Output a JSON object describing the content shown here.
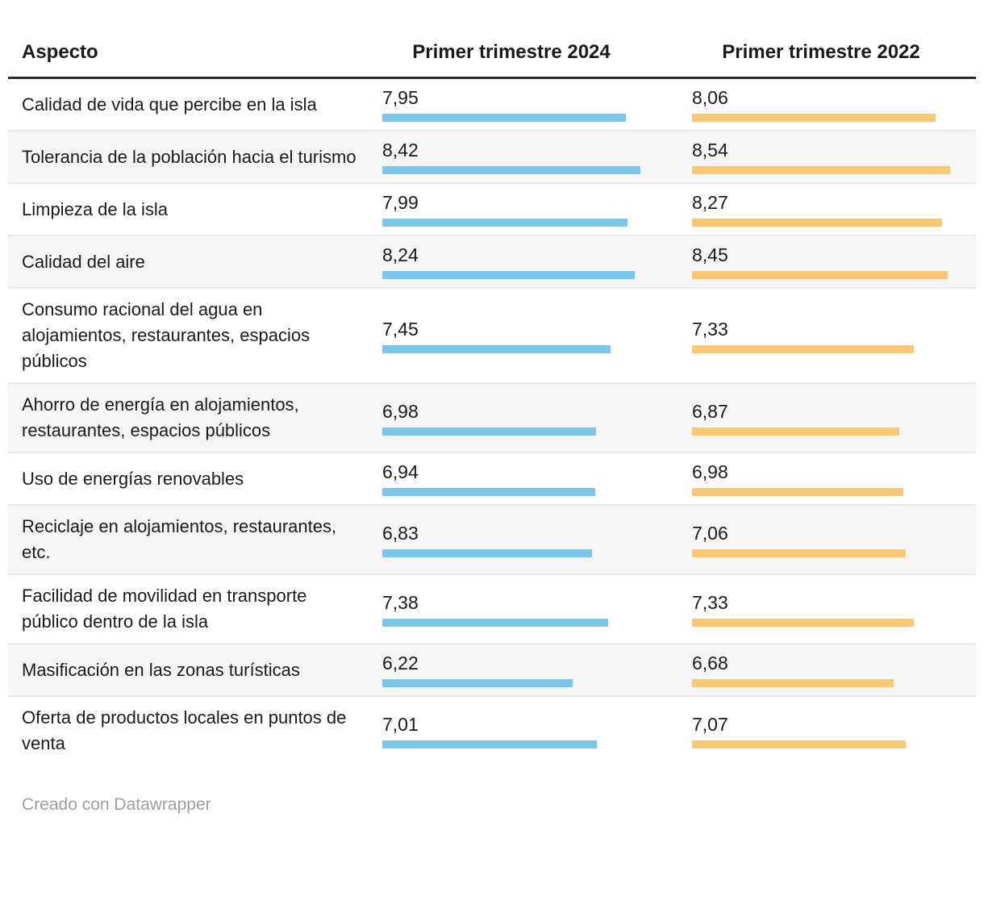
{
  "table": {
    "columns": [
      "Aspecto",
      "Primer trimestre 2024",
      "Primer trimestre 2022"
    ],
    "rows": [
      {
        "label": "Calidad de vida que percibe en la isla",
        "v2024": "7,95",
        "v2022": "8,06"
      },
      {
        "label": "Tolerancia de la población hacia el turismo",
        "v2024": "8,42",
        "v2022": "8,54"
      },
      {
        "label": "Limpieza de la isla",
        "v2024": "7,99",
        "v2022": "8,27"
      },
      {
        "label": "Calidad del aire",
        "v2024": "8,24",
        "v2022": "8,45"
      },
      {
        "label": "Consumo racional del agua en alojamientos, restaurantes, espacios públicos",
        "v2024": "7,45",
        "v2022": "7,33"
      },
      {
        "label": "Ahorro de energía en alojamientos, restaurantes, espacios públicos",
        "v2024": "6,98",
        "v2022": "6,87"
      },
      {
        "label": "Uso de energías renovables",
        "v2024": "6,94",
        "v2022": "6,98"
      },
      {
        "label": "Reciclaje en alojamientos, restaurantes, etc.",
        "v2024": "6,83",
        "v2022": "7,06"
      },
      {
        "label": "Facilidad de movilidad en transporte público dentro de la isla",
        "v2024": "7,38",
        "v2022": "7,33"
      },
      {
        "label": "Masificación en las zonas turísticas",
        "v2024": "6,22",
        "v2022": "6,68"
      },
      {
        "label": "Oferta de productos locales en puntos de venta",
        "v2024": "7,01",
        "v2022": "7,07"
      }
    ]
  },
  "chart_data": {
    "type": "table",
    "title": "",
    "categories": [
      "Calidad de vida que percibe en la isla",
      "Tolerancia de la población hacia el turismo",
      "Limpieza de la isla",
      "Calidad del aire",
      "Consumo racional del agua en alojamientos, restaurantes, espacios públicos",
      "Ahorro de energía en alojamientos, restaurantes, espacios públicos",
      "Uso de energías renovables",
      "Reciclaje en alojamientos, restaurantes, etc.",
      "Facilidad de movilidad en transporte público dentro de la isla",
      "Masificación en las zonas turísticas",
      "Oferta de productos locales en puntos de venta"
    ],
    "series": [
      {
        "name": "Primer trimestre 2024",
        "values": [
          7.95,
          8.42,
          7.99,
          8.24,
          7.45,
          6.98,
          6.94,
          6.83,
          7.38,
          6.22,
          7.01
        ]
      },
      {
        "name": "Primer trimestre 2022",
        "values": [
          8.06,
          8.54,
          8.27,
          8.45,
          7.33,
          6.87,
          6.98,
          7.06,
          7.33,
          6.68,
          7.07
        ]
      }
    ],
    "value_format": "decimal-comma",
    "bar_scaling": "bars normalized to each column's max value",
    "legend_position": "none",
    "grid": false
  },
  "colors": {
    "bar_2024": "#79c7ea",
    "bar_2022": "#fac873",
    "header_rule": "#2b2b2b",
    "alt_row_bg": "#f5f5f5",
    "row_separator": "#e9e9e9",
    "footer_text": "#9e9e9e"
  },
  "footer": {
    "credit": "Creado con Datawrapper"
  }
}
